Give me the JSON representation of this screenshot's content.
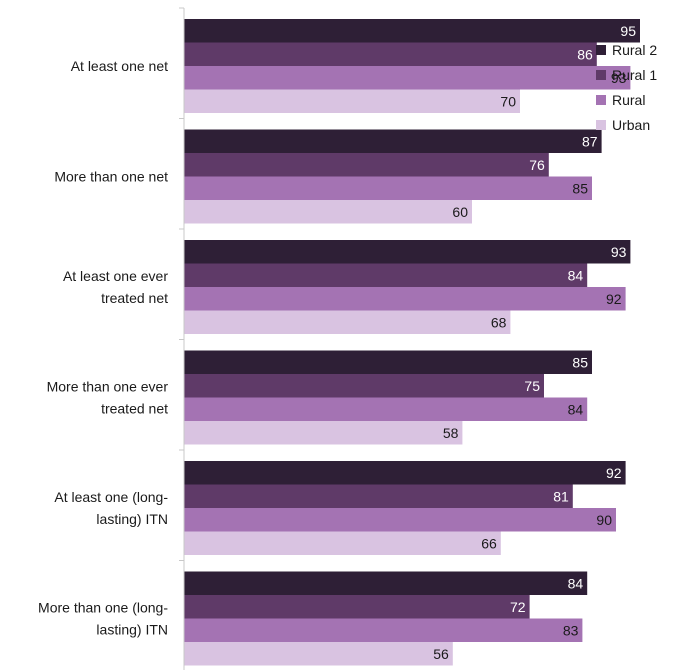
{
  "chart_data": {
    "type": "bar",
    "orientation": "horizontal",
    "title": "",
    "xlabel": "",
    "ylabel": "",
    "xlim": [
      0,
      100
    ],
    "grid": false,
    "legend_position": "top-right",
    "categories": [
      [
        "At least one net"
      ],
      [
        "More than one net"
      ],
      [
        "At least one ever",
        "treated net"
      ],
      [
        "More than one ever",
        "treated net"
      ],
      [
        "At least one (long-",
        "lasting) ITN"
      ],
      [
        "More than one (long-",
        "lasting) ITN"
      ]
    ],
    "series": [
      {
        "name": "Rural 2",
        "color": "#2e1f36",
        "label_color": "#ffffff",
        "values": [
          95,
          87,
          93,
          85,
          92,
          84
        ]
      },
      {
        "name": "Rural 1",
        "color": "#5f3a68",
        "label_color": "#ffffff",
        "values": [
          86,
          76,
          84,
          75,
          81,
          72
        ]
      },
      {
        "name": "Rural",
        "color": "#a473b3",
        "label_color": "#1a1a1a",
        "values": [
          93,
          85,
          92,
          84,
          90,
          83
        ]
      },
      {
        "name": "Urban",
        "color": "#d9c3e1",
        "label_color": "#1a1a1a",
        "values": [
          70,
          60,
          68,
          58,
          66,
          56
        ]
      }
    ]
  }
}
